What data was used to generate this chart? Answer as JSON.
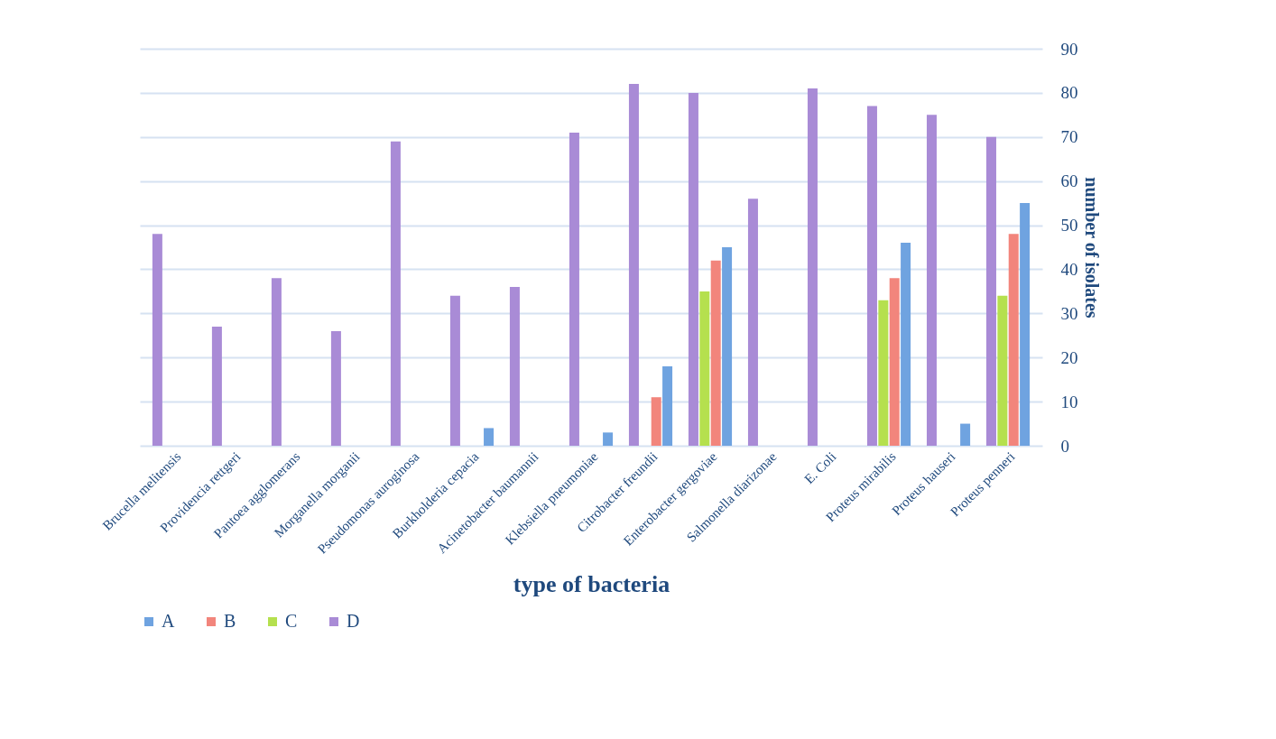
{
  "chart_data": {
    "type": "bar",
    "xlabel": "type of bacteria",
    "ylabel": "number of isolates",
    "categories": [
      "Brucella melitensis",
      "Providencia rettgeri",
      "Pantoea agglomerans",
      "Morganella morganii",
      "Pseudomonas auroginosa",
      "Burkholderia cepacia",
      "Acinetobacter baumannii",
      "Klebsiella pneumoniae",
      "Citrobacter freundii",
      "Enterobacter gergoviae",
      "Salmonella diarizonae",
      "E. Coli",
      "Proteus mirabilis",
      "Proteus hauseri",
      "Proteus penneri"
    ],
    "series": [
      {
        "name": "A",
        "color": "#6fa3e0",
        "values": [
          null,
          null,
          null,
          null,
          null,
          4,
          null,
          3,
          18,
          45,
          null,
          null,
          46,
          5,
          55
        ]
      },
      {
        "name": "B",
        "color": "#f2857c",
        "values": [
          null,
          null,
          null,
          null,
          null,
          null,
          null,
          null,
          11,
          42,
          null,
          null,
          38,
          null,
          48
        ]
      },
      {
        "name": "C",
        "color": "#b5e04e",
        "values": [
          null,
          null,
          null,
          null,
          null,
          null,
          null,
          null,
          null,
          35,
          null,
          null,
          33,
          null,
          34
        ]
      },
      {
        "name": "D",
        "color": "#a98bd6",
        "values": [
          48,
          27,
          38,
          26,
          69,
          34,
          36,
          71,
          82,
          80,
          56,
          81,
          77,
          75,
          70
        ]
      }
    ],
    "ylim": [
      0,
      90
    ],
    "yticks": [
      0,
      10,
      20,
      30,
      40,
      50,
      60,
      70,
      80,
      90
    ],
    "grid": "y",
    "legend": "bottom"
  }
}
